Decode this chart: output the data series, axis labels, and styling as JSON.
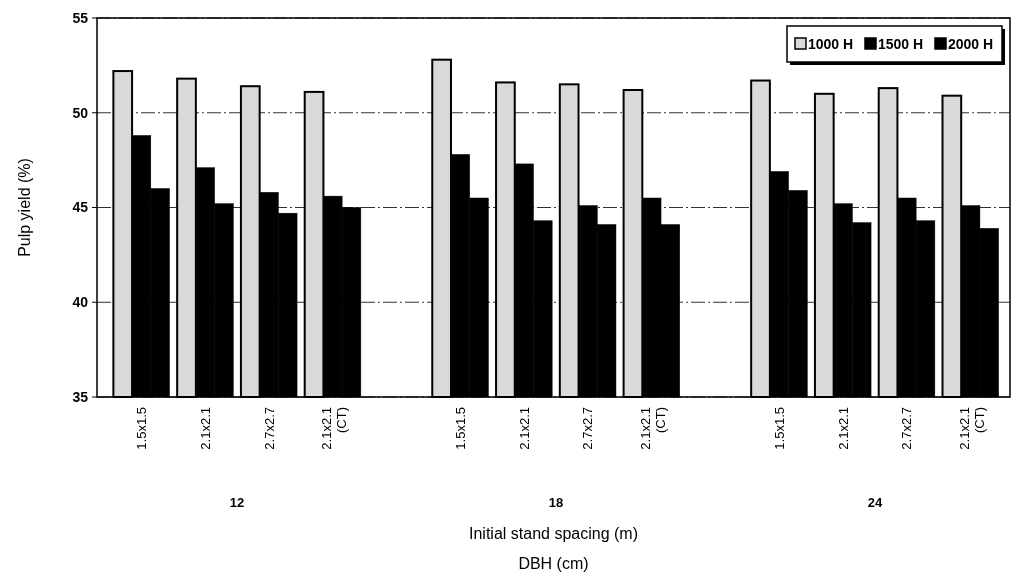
{
  "chart_data": {
    "type": "bar",
    "categories": [
      "1.5x1.5",
      "2.1x2.1",
      "2.7x2.7",
      "2.1x2.1 (CT)",
      null,
      "1.5x1.5",
      "2.1x2.1",
      "2.7x2.7",
      "2.1x2.1 (CT)",
      null,
      "1.5x1.5",
      "2.1x2.1",
      "2.7x2.7",
      "2.1x2.1 (CT)"
    ],
    "series": [
      {
        "name": "1000 H",
        "color": "#d9d9d9",
        "values": [
          52.2,
          51.8,
          51.4,
          51.1,
          null,
          52.8,
          51.6,
          51.5,
          51.2,
          null,
          51.7,
          51.0,
          51.3,
          50.9
        ]
      },
      {
        "name": "1500 H",
        "color": "#000000",
        "values": [
          48.8,
          47.1,
          45.8,
          45.6,
          null,
          47.8,
          47.3,
          45.1,
          45.5,
          null,
          46.9,
          45.2,
          45.5,
          45.1
        ]
      },
      {
        "name": "2000 H",
        "color": "#000000",
        "values": [
          46.0,
          45.2,
          44.7,
          45.0,
          null,
          45.5,
          44.3,
          44.1,
          44.1,
          null,
          45.9,
          44.2,
          44.3,
          43.9
        ]
      }
    ],
    "ylim": [
      35,
      55
    ],
    "yticks": [
      35,
      40,
      45,
      50,
      55
    ],
    "ylabel": "Pulp yield (%)",
    "xlabel": "Initial stand spacing (m)",
    "annotations": [
      "12",
      "18",
      "24",
      "DBH (cm)"
    ],
    "grid": "y",
    "legend": "top right"
  }
}
